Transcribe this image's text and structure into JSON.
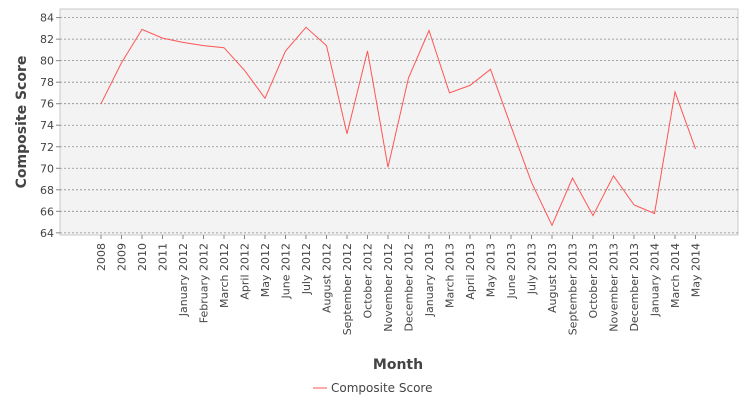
{
  "chart_data": {
    "type": "line",
    "title": "",
    "xlabel": "Month",
    "ylabel": "Composite Score",
    "ylim": [
      63.8,
      84.8
    ],
    "yticks": [
      64,
      66,
      68,
      70,
      72,
      74,
      76,
      78,
      80,
      82,
      84
    ],
    "grid": true,
    "legend_position": "bottom-center",
    "categories": [
      "2008",
      "2009",
      "2010",
      "2011",
      "January 2012",
      "February 2012",
      "March 2012",
      "April 2012",
      "May 2012",
      "June 2012",
      "July 2012",
      "August 2012",
      "September 2012",
      "October 2012",
      "November 2012",
      "December 2012",
      "January 2013",
      "March 2013",
      "April 2013",
      "May 2013",
      "June 2013",
      "July 2013",
      "August 2013",
      "September 2013",
      "October 2013",
      "November 2013",
      "December 2013",
      "January 2014",
      "March 2014",
      "May 2014"
    ],
    "series": [
      {
        "name": "Composite Score",
        "color": "#ff5555",
        "values": [
          76.0,
          79.8,
          82.9,
          82.1,
          81.7,
          81.4,
          81.2,
          79.1,
          76.5,
          80.9,
          83.1,
          81.4,
          73.2,
          80.9,
          70.1,
          78.4,
          82.8,
          77.0,
          77.7,
          79.2,
          73.9,
          68.7,
          64.7,
          69.1,
          65.6,
          69.3,
          66.6,
          65.8,
          77.1,
          71.8
        ]
      }
    ]
  }
}
